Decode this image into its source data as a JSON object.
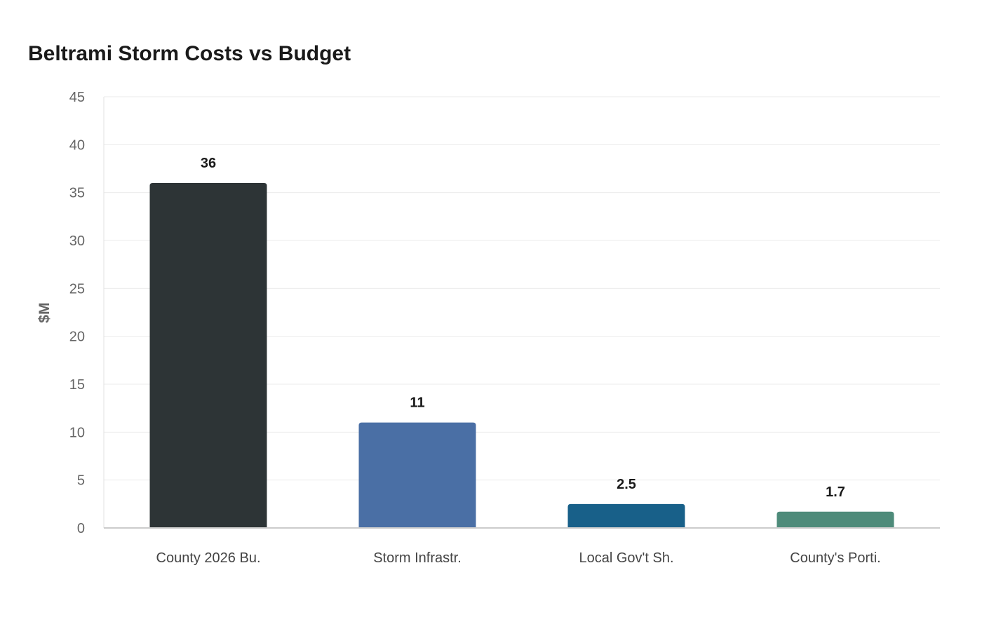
{
  "chart_data": {
    "type": "bar",
    "title": "Beltrami Storm Costs vs Budget",
    "ylabel": "$M",
    "xlabel": "",
    "ylim": [
      0,
      45
    ],
    "yticks": [
      0,
      5,
      10,
      15,
      20,
      25,
      30,
      35,
      40,
      45
    ],
    "grid": true,
    "categories": [
      "County 2026 Bu.",
      "Storm Infrastr.",
      "Local Gov't Sh.",
      "County's Porti."
    ],
    "values": [
      36,
      11,
      2.5,
      1.7
    ],
    "data_labels": [
      "36",
      "11",
      "2.5",
      "1.7"
    ],
    "colors": [
      "#2d3436",
      "#4a6fa5",
      "#186089",
      "#4e8b7a"
    ]
  }
}
